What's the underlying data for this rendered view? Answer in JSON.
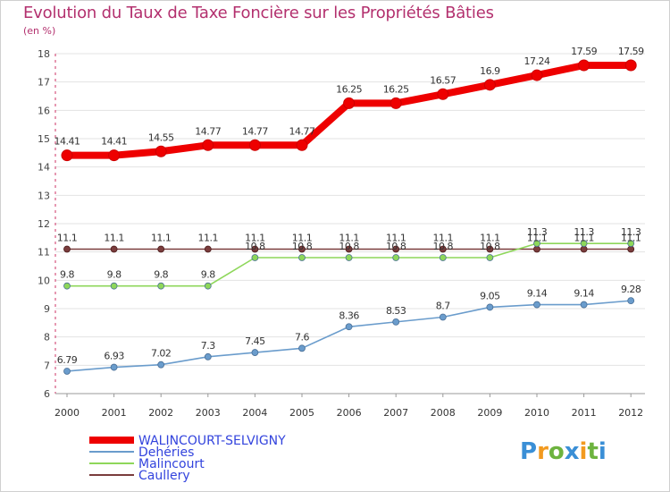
{
  "header": {
    "title": "Evolution du Taux de Taxe Foncière sur les Propriétés Bâties",
    "subtitle": "(en %)"
  },
  "logo": {
    "text": "Proxiti",
    "colors": [
      "#3a8fd6",
      "#f29a1f",
      "#6db33f",
      "#3a8fd6",
      "#f29a1f",
      "#6db33f",
      "#3a8fd6"
    ]
  },
  "chart_data": {
    "type": "line",
    "title": "Evolution du Taux de Taxe Foncière sur les Propriétés Bâties",
    "ylabel": "(en %)",
    "xlabel": "",
    "categories": [
      "2000",
      "2001",
      "2002",
      "2003",
      "2004",
      "2005",
      "2006",
      "2007",
      "2008",
      "2009",
      "2010",
      "2011",
      "2012"
    ],
    "ylim": [
      6,
      18
    ],
    "yticks": [
      6,
      7,
      8,
      9,
      10,
      11,
      12,
      13,
      14,
      15,
      16,
      17,
      18
    ],
    "legend_position": "bottom-left",
    "series": [
      {
        "name": "WALINCOURT-SELVIGNY",
        "color": "#ee0000",
        "labelColor": "#333333",
        "values": [
          14.41,
          14.41,
          14.55,
          14.77,
          14.77,
          14.77,
          16.25,
          16.25,
          16.57,
          16.9,
          17.24,
          17.59,
          17.59
        ],
        "labels": [
          "14.41",
          "14.41",
          "14.55",
          "14.77",
          "14.77",
          "14.77",
          "16.25",
          "16.25",
          "16.57",
          "16.9",
          "17.24",
          "17.59",
          "17.59"
        ]
      },
      {
        "name": "Dehéries",
        "color": "#6a9ccc",
        "labelColor": "#333333",
        "values": [
          6.79,
          6.93,
          7.02,
          7.3,
          7.45,
          7.6,
          8.36,
          8.53,
          8.7,
          9.05,
          9.14,
          9.14,
          9.28
        ],
        "labels": [
          "6.79",
          "6.93",
          "7.02",
          "7.3",
          "7.45",
          "7.6",
          "8.36",
          "8.53",
          "8.7",
          "9.05",
          "9.14",
          "9.14",
          "9.28"
        ]
      },
      {
        "name": "Malincourt",
        "color": "#8ed75a",
        "labelColor": "#333333",
        "values": [
          9.8,
          9.8,
          9.8,
          9.8,
          10.8,
          10.8,
          10.8,
          10.8,
          10.8,
          10.8,
          11.3,
          11.3,
          11.3
        ],
        "labels": [
          "9.8",
          "9.8",
          "9.8",
          "9.8",
          "10.8",
          "10.8",
          "10.8",
          "10.8",
          "10.8",
          "10.8",
          "11.3",
          "11.3",
          "11.3"
        ]
      },
      {
        "name": "Caullery",
        "color": "#7a3c3c",
        "labelColor": "#333333",
        "values": [
          11.1,
          11.1,
          11.1,
          11.1,
          11.1,
          11.1,
          11.1,
          11.1,
          11.1,
          11.1,
          11.1,
          11.1,
          11.1
        ],
        "labels": [
          "11.1",
          "11.1",
          "11.1",
          "11.1",
          "11.1",
          "11.1",
          "11.1",
          "11.1",
          "11.1",
          "11.1",
          "11.1",
          "11.1",
          "11.1"
        ]
      }
    ]
  }
}
